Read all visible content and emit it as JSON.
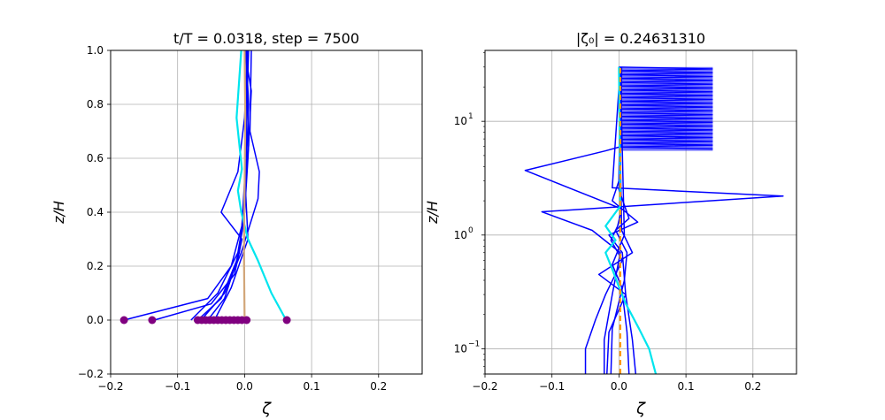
{
  "chart_data": [
    {
      "type": "line",
      "title": "t/T = 0.0318, step = 7500",
      "xlabel": "ζ",
      "ylabel": "z/H",
      "xlim": [
        -0.2,
        0.265
      ],
      "ylim": [
        -0.2,
        1.0
      ],
      "yscale": "linear",
      "grid": true,
      "x_ticks": [
        "−0.2",
        "−0.1",
        "0.0",
        "0.1",
        "0.2"
      ],
      "x_tick_values": [
        -0.2,
        -0.1,
        0.0,
        0.1,
        0.2
      ],
      "y_ticks": [
        "−0.2",
        "0.0",
        "0.2",
        "0.4",
        "0.6",
        "0.8",
        "1.0"
      ],
      "y_tick_values": [
        -0.2,
        0.0,
        0.2,
        0.4,
        0.6,
        0.8,
        1.0
      ],
      "colors": {
        "profiles": "#0000ff",
        "current": "#00e5ee",
        "mean": "#d2a679",
        "points": "#800080"
      },
      "series": [
        {
          "role": "profiles",
          "x": [
            -0.08,
            -0.04,
            -0.01,
            0.0,
            0.005,
            0.01,
            0.0
          ],
          "y": [
            0.0,
            0.1,
            0.25,
            0.4,
            0.6,
            0.85,
            1.0
          ]
        },
        {
          "role": "profiles",
          "x": [
            -0.07,
            -0.035,
            -0.012,
            -0.002,
            0.003,
            0.006,
            0.002
          ],
          "y": [
            0.0,
            0.08,
            0.22,
            0.35,
            0.6,
            0.8,
            1.0
          ]
        },
        {
          "role": "profiles",
          "x": [
            -0.055,
            -0.03,
            -0.008,
            0.0,
            0.006,
            0.002
          ],
          "y": [
            0.0,
            0.08,
            0.25,
            0.45,
            0.65,
            1.0
          ]
        },
        {
          "role": "profiles",
          "x": [
            -0.18,
            -0.055,
            -0.02,
            -0.004,
            0.002,
            0.004
          ],
          "y": [
            0.0,
            0.08,
            0.2,
            0.35,
            0.6,
            1.0
          ]
        },
        {
          "role": "profiles",
          "x": [
            -0.135,
            -0.05,
            -0.015,
            -0.004,
            -0.035,
            -0.01,
            0.0,
            0.004
          ],
          "y": [
            0.0,
            0.06,
            0.17,
            0.3,
            0.4,
            0.55,
            0.75,
            1.0
          ]
        },
        {
          "role": "profiles",
          "x": [
            -0.065,
            -0.03,
            -0.005,
            0.02,
            0.022,
            0.008,
            0.01
          ],
          "y": [
            0.0,
            0.1,
            0.25,
            0.45,
            0.55,
            0.7,
            1.0
          ]
        },
        {
          "role": "profiles",
          "x": [
            -0.045,
            -0.02,
            0.005,
            0.0,
            0.006
          ],
          "y": [
            0.0,
            0.12,
            0.3,
            0.55,
            1.0
          ]
        },
        {
          "role": "current",
          "x": [
            0.062,
            0.04,
            0.02,
            0.005,
            -0.005,
            -0.01,
            -0.004,
            -0.012,
            -0.005
          ],
          "y": [
            0.0,
            0.1,
            0.22,
            0.3,
            0.4,
            0.48,
            0.56,
            0.75,
            1.0
          ]
        },
        {
          "role": "mean",
          "x": [
            0.0,
            -0.001,
            0.0,
            0.001,
            0.0
          ],
          "y": [
            0.0,
            0.25,
            0.5,
            0.75,
            1.0
          ]
        }
      ],
      "points": [
        {
          "x": -0.18,
          "y": 0.0
        },
        {
          "x": -0.138,
          "y": 0.0
        },
        {
          "x": -0.07,
          "y": 0.0
        },
        {
          "x": -0.064,
          "y": 0.0
        },
        {
          "x": -0.058,
          "y": 0.0
        },
        {
          "x": -0.052,
          "y": 0.0
        },
        {
          "x": -0.046,
          "y": 0.0
        },
        {
          "x": -0.04,
          "y": 0.0
        },
        {
          "x": -0.034,
          "y": 0.0
        },
        {
          "x": -0.028,
          "y": 0.0
        },
        {
          "x": -0.022,
          "y": 0.0
        },
        {
          "x": -0.016,
          "y": 0.0
        },
        {
          "x": -0.01,
          "y": 0.0
        },
        {
          "x": -0.004,
          "y": 0.0
        },
        {
          "x": 0.003,
          "y": 0.0
        },
        {
          "x": 0.063,
          "y": 0.0
        }
      ]
    },
    {
      "type": "line",
      "title": "|ζ₀| = 0.24631310",
      "xlabel": "ζ",
      "ylabel": "z/H",
      "xlim": [
        -0.2,
        0.265
      ],
      "ylim": [
        0.06,
        42
      ],
      "yscale": "log",
      "grid": true,
      "x_ticks": [
        "−0.2",
        "−0.1",
        "0.0",
        "0.1",
        "0.2"
      ],
      "x_tick_values": [
        -0.2,
        -0.1,
        0.0,
        0.1,
        0.2
      ],
      "y_ticks": [
        {
          "base": "10",
          "exp": "−1",
          "value": 0.1
        },
        {
          "base": "10",
          "exp": "0",
          "value": 1
        },
        {
          "base": "10",
          "exp": "1",
          "value": 10
        }
      ],
      "colors": {
        "profiles": "#0000ff",
        "current": "#00e5ee",
        "mean": "#ff9900"
      },
      "band_zone": {
        "x_left": 0.0,
        "x_right": 0.14,
        "y_bottom": 5.5,
        "y_top": 30
      },
      "series": [
        {
          "role": "profiles",
          "x": [
            -0.05,
            -0.05,
            -0.035,
            -0.02,
            0.005,
            -0.012,
            -0.002,
            0.004,
            -0.14,
            -0.02,
            0.003,
            0.004
          ],
          "y": [
            0.06,
            0.1,
            0.18,
            0.3,
            0.6,
            0.9,
            1.2,
            1.7,
            3.7,
            5.5,
            6.0,
            30
          ]
        },
        {
          "role": "profiles",
          "x": [
            -0.022,
            -0.022,
            -0.01,
            0.002,
            -0.04,
            -0.115,
            0.245,
            -0.01,
            0.002
          ],
          "y": [
            0.06,
            0.12,
            0.3,
            0.7,
            1.1,
            1.6,
            2.2,
            2.6,
            30
          ]
        },
        {
          "role": "profiles",
          "x": [
            -0.018,
            -0.015,
            0.01,
            0.005,
            -0.015,
            0.028,
            -0.01,
            0.0,
            0.002
          ],
          "y": [
            0.06,
            0.14,
            0.3,
            0.7,
            1.0,
            1.3,
            2.0,
            3.0,
            30
          ]
        },
        {
          "role": "profiles",
          "x": [
            -0.012,
            -0.01,
            0.008,
            0.012,
            -0.005,
            0.015,
            0.0,
            0.002
          ],
          "y": [
            0.06,
            0.15,
            0.4,
            0.7,
            1.1,
            1.4,
            2.5,
            30
          ]
        },
        {
          "role": "profiles",
          "x": [
            0.025,
            0.02,
            0.01,
            -0.03,
            0.02,
            0.004,
            0.0
          ],
          "y": [
            0.06,
            0.12,
            0.3,
            0.45,
            0.7,
            1.1,
            30
          ]
        },
        {
          "role": "profiles",
          "x": [
            0.015,
            0.012,
            0.004,
            -0.01,
            0.008,
            0.002
          ],
          "y": [
            0.06,
            0.14,
            0.35,
            0.55,
            1.0,
            30
          ]
        },
        {
          "role": "current",
          "x": [
            0.055,
            0.045,
            0.03,
            0.01,
            0.0,
            -0.01,
            -0.02,
            -0.005,
            -0.02,
            0.002,
            0.0
          ],
          "y": [
            0.06,
            0.1,
            0.15,
            0.25,
            0.35,
            0.5,
            0.7,
            0.9,
            1.2,
            1.8,
            30
          ]
        },
        {
          "role": "mean",
          "x": [
            0.002,
            0.002
          ],
          "y": [
            0.06,
            30
          ]
        }
      ]
    }
  ]
}
